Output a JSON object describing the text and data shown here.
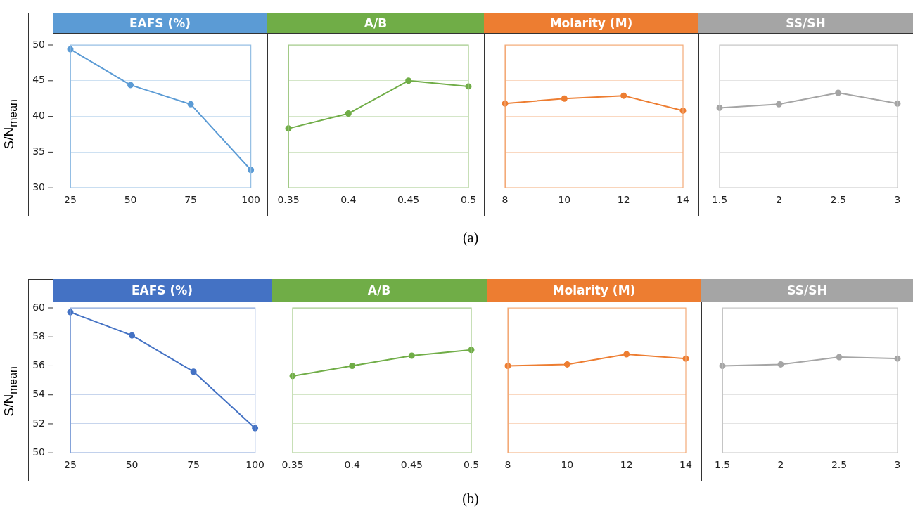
{
  "chart_data": [
    {
      "type": "line",
      "title": "EAFS (%)",
      "ylabel": "S/N$_{mean}$",
      "categories": [
        "25",
        "50",
        "75",
        "100"
      ],
      "series": [
        {
          "color": "#5b9bd5",
          "values": [
            49.4,
            44.4,
            41.7,
            32.5
          ]
        }
      ],
      "ylim": [
        30,
        50
      ],
      "yticks": [
        30,
        35,
        40,
        45,
        50
      ],
      "grid": "y",
      "marker": "circle",
      "annotations": [
        "(a)"
      ]
    },
    {
      "type": "line",
      "title": "A/B",
      "categories": [
        "0.35",
        "0.4",
        "0.45",
        "0.5"
      ],
      "series": [
        {
          "color": "#70ad47",
          "values": [
            38.3,
            40.4,
            45.0,
            44.2
          ]
        }
      ],
      "ylim": [
        30,
        50
      ],
      "yticks": [
        30,
        35,
        40,
        45,
        50
      ],
      "grid": "y",
      "marker": "circle",
      "tick_labels": "x"
    },
    {
      "type": "line",
      "title": "Molarity (M)",
      "categories": [
        "8",
        "10",
        "12",
        "14"
      ],
      "series": [
        {
          "color": "#ed7d31",
          "values": [
            41.8,
            42.5,
            42.9,
            40.8
          ]
        }
      ],
      "ylim": [
        30,
        50
      ],
      "yticks": [
        30,
        35,
        40,
        45,
        50
      ],
      "grid": "y",
      "marker": "circle",
      "tick_labels": "x"
    },
    {
      "type": "line",
      "title": "SS/SH",
      "categories": [
        "1.5",
        "2",
        "2.5",
        "3"
      ],
      "series": [
        {
          "color": "#a5a5a5",
          "values": [
            41.2,
            41.7,
            43.3,
            41.8
          ]
        }
      ],
      "ylim": [
        30,
        50
      ],
      "yticks": [
        30,
        35,
        40,
        45,
        50
      ],
      "grid": "y",
      "marker": "circle",
      "tick_labels": "x"
    },
    {
      "type": "line",
      "title": "EAFS (%)",
      "ylabel": "S/N$_{mean}$",
      "categories": [
        "25",
        "50",
        "75",
        "100"
      ],
      "series": [
        {
          "color": "#4472c4",
          "values": [
            59.7,
            58.1,
            55.6,
            51.7
          ]
        }
      ],
      "ylim": [
        50,
        60
      ],
      "yticks": [
        50,
        52,
        54,
        56,
        58,
        60
      ],
      "grid": "y",
      "marker": "circle",
      "annotations": [
        "(b)"
      ]
    },
    {
      "type": "line",
      "title": "A/B",
      "categories": [
        "0.35",
        "0.4",
        "0.45",
        "0.5"
      ],
      "series": [
        {
          "color": "#70ad47",
          "values": [
            55.3,
            56.0,
            56.7,
            57.1
          ]
        }
      ],
      "ylim": [
        50,
        60
      ],
      "yticks": [
        50,
        52,
        54,
        56,
        58,
        60
      ],
      "grid": "y",
      "marker": "circle",
      "tick_labels": "x"
    },
    {
      "type": "line",
      "title": "Molarity (M)",
      "categories": [
        "8",
        "10",
        "12",
        "14"
      ],
      "series": [
        {
          "color": "#ed7d31",
          "values": [
            56.0,
            56.1,
            56.8,
            56.5
          ]
        }
      ],
      "ylim": [
        50,
        60
      ],
      "yticks": [
        50,
        52,
        54,
        56,
        58,
        60
      ],
      "grid": "y",
      "marker": "circle",
      "tick_labels": "x"
    },
    {
      "type": "line",
      "title": "SS/SH",
      "categories": [
        "1.5",
        "2",
        "2.5",
        "3"
      ],
      "series": [
        {
          "color": "#a5a5a5",
          "values": [
            56.0,
            56.1,
            56.6,
            56.5
          ]
        }
      ],
      "ylim": [
        50,
        60
      ],
      "yticks": [
        50,
        52,
        54,
        56,
        58,
        60
      ],
      "grid": "y",
      "marker": "circle",
      "tick_labels": "x"
    }
  ]
}
